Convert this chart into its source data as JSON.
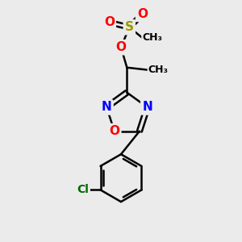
{
  "background_color": "#ebebeb",
  "bond_color": "#000000",
  "bond_width": 1.8,
  "atoms": {
    "S": {
      "color": "#999900",
      "fontsize": 11,
      "fontweight": "bold"
    },
    "O": {
      "color": "#ff0000",
      "fontsize": 11,
      "fontweight": "bold"
    },
    "N": {
      "color": "#0000ff",
      "fontsize": 11,
      "fontweight": "bold"
    },
    "C": {
      "color": "#000000",
      "fontsize": 10,
      "fontweight": "bold"
    },
    "Cl": {
      "color": "#006600",
      "fontsize": 10,
      "fontweight": "bold"
    }
  },
  "figsize": [
    3.0,
    3.0
  ],
  "dpi": 100,
  "xlim": [
    0,
    10
  ],
  "ylim": [
    0,
    10
  ]
}
